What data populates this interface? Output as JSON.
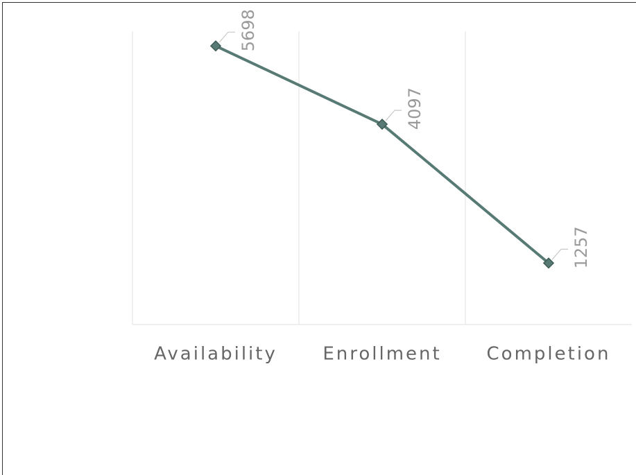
{
  "chart_data": {
    "type": "line",
    "categories": [
      "Availability",
      "Enrollment",
      "Completion"
    ],
    "series": [
      {
        "name": null,
        "color": "#587a74",
        "values": [
          5698,
          4097,
          1257
        ]
      }
    ],
    "ylim": [
      0,
      6000
    ]
  }
}
